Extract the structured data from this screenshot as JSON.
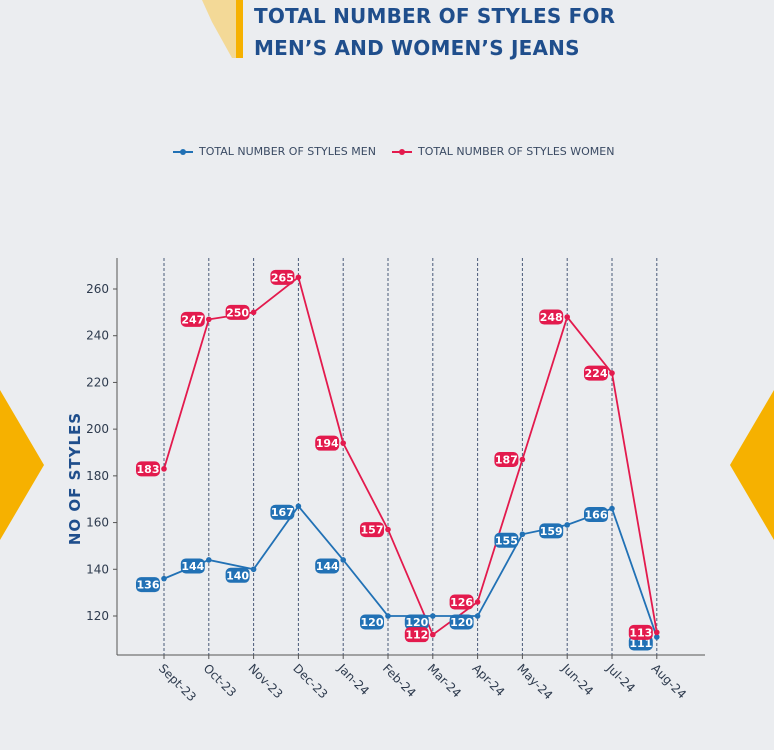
{
  "title": {
    "line1": "TOTAL NUMBER OF STYLES FOR",
    "line2": "MEN’S AND WOMEN’S JEANS"
  },
  "colors": {
    "men": "#2171b5",
    "women": "#e31a4d",
    "accent": "#f6b100",
    "title": "#1f4e8c"
  },
  "chart_data": {
    "type": "line",
    "ylabel": "NO OF STYLES",
    "xlabel": "",
    "ylim": [
      110,
      270
    ],
    "yticks": [
      120,
      140,
      160,
      180,
      200,
      220,
      240,
      260
    ],
    "categories": [
      "Sept-23",
      "Oct-23",
      "Nov-23",
      "Dec-23",
      "Jan-24",
      "Feb-24",
      "Mar-24",
      "Apr-24",
      "May-24",
      "Jun-24",
      "Jul-24",
      "Aug-24"
    ],
    "grid": "vertical dashed",
    "legend": "top",
    "series": [
      {
        "name": "TOTAL NUMBER OF STYLES MEN",
        "values": [
          136,
          144,
          140,
          167,
          144,
          120,
          120,
          120,
          155,
          159,
          166,
          111
        ]
      },
      {
        "name": "TOTAL NUMBER OF STYLES WOMEN",
        "values": [
          183,
          247,
          250,
          265,
          194,
          157,
          112,
          126,
          187,
          248,
          224,
          113
        ]
      }
    ]
  }
}
